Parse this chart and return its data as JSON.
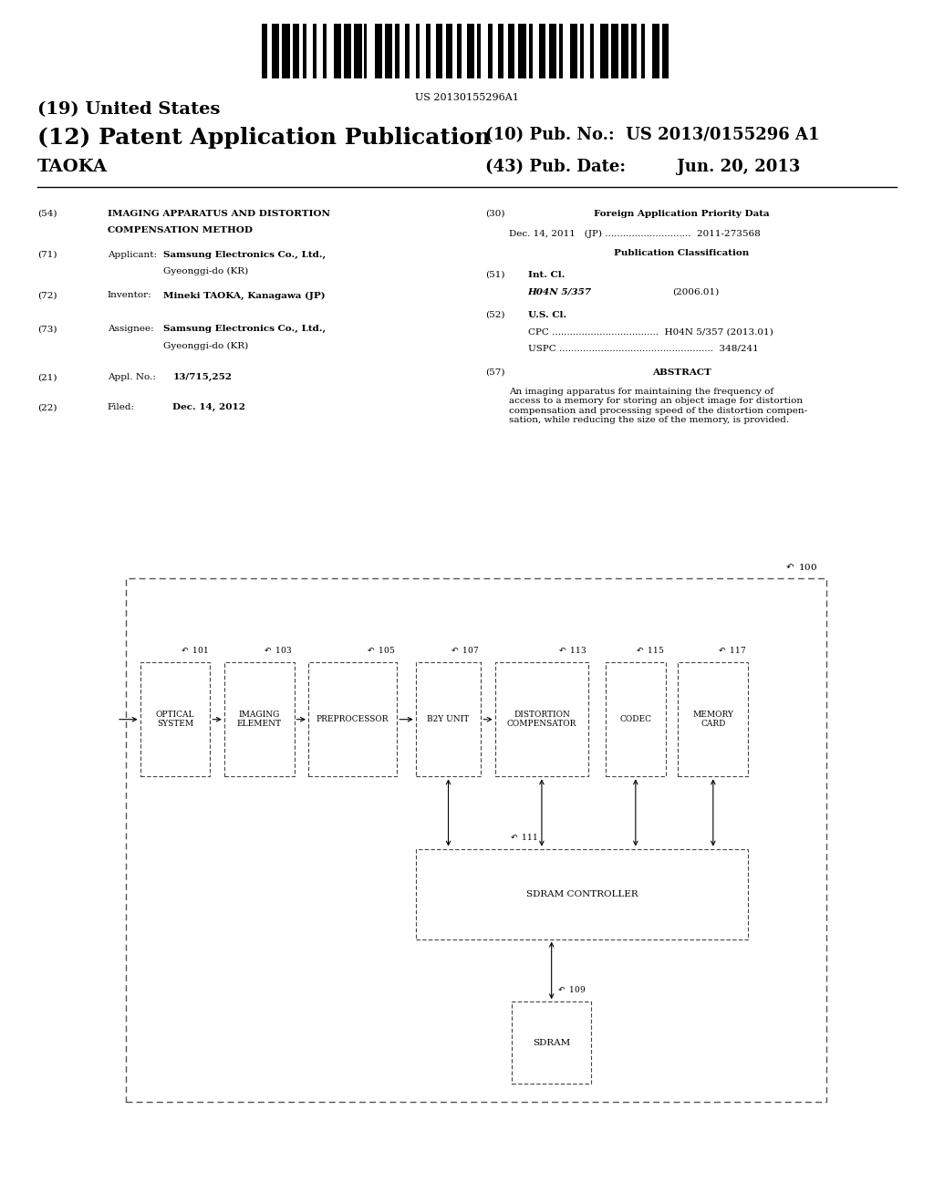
{
  "background_color": "#ffffff",
  "barcode_text": "US 20130155296A1",
  "title_19": "(19) United States",
  "title_12": "(12) Patent Application Publication",
  "pub_no_label": "(10) Pub. No.:",
  "pub_no_value": "US 2013/0155296 A1",
  "pub_date_label": "(43) Pub. Date:",
  "pub_date_value": "Jun. 20, 2013",
  "inventor_name": "TAOKA",
  "field_54_label": "(54)",
  "field_54_text1": "IMAGING APPARATUS AND DISTORTION",
  "field_54_text2": "COMPENSATION METHOD",
  "field_71_label": "(71)",
  "field_72_label": "(72)",
  "field_73_label": "(73)",
  "field_21_label": "(21)",
  "field_22_label": "(22)",
  "field_22_text": "Filed:",
  "field_22_value": "Dec. 14, 2012",
  "field_30_label": "(30)",
  "field_30_title": "Foreign Application Priority Data",
  "field_30_line": "Dec. 14, 2011   (JP) .............................  2011-273568",
  "field_pub_class_title": "Publication Classification",
  "field_51_label": "(51)",
  "field_51_text1": "Int. Cl.",
  "field_51_text2": "H04N 5/357",
  "field_51_text3": "(2006.01)",
  "field_52_label": "(52)",
  "field_52_text1": "U.S. Cl.",
  "field_52_text2": "CPC ....................................  H04N 5/357 (2013.01)",
  "field_52_text3": "USPC ....................................................  348/241",
  "field_57_label": "(57)",
  "field_57_title": "ABSTRACT",
  "field_57_text": "An imaging apparatus for maintaining the frequency of\naccess to a memory for storing an object image for distortion\ncompensation and processing speed of the distortion compen-\nsation, while reducing the size of the memory, is provided."
}
